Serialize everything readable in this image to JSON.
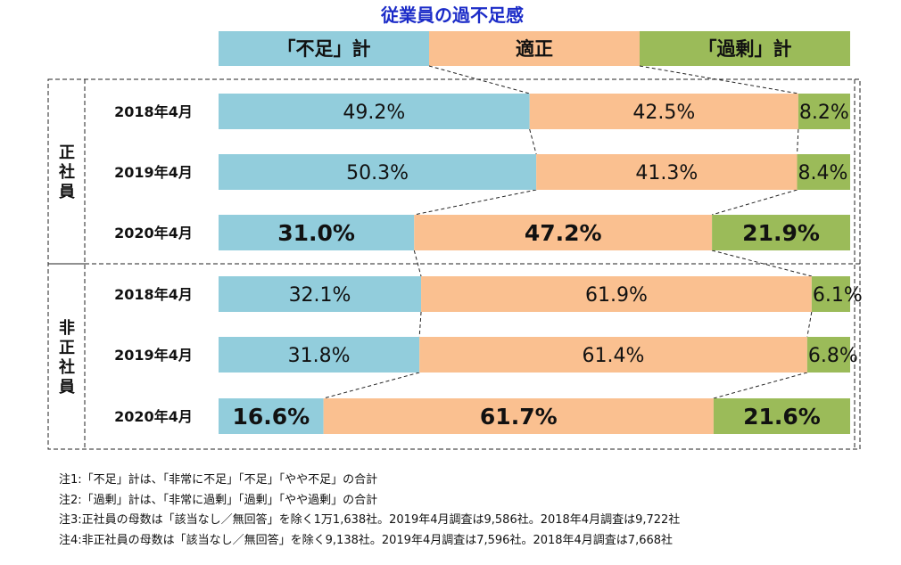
{
  "chart_data": {
    "type": "bar",
    "stacked": true,
    "orientation": "horizontal",
    "percent_stacked": true,
    "title": "従業員の過不足感",
    "legend": [
      "「不足」計",
      "適正",
      "「過剰」計"
    ],
    "legend_position": "top",
    "colors": [
      "#92cddc",
      "#fac090",
      "#9bbb59"
    ],
    "groups": [
      {
        "name": "正社員",
        "categories": [
          "2018年4月",
          "2019年4月",
          "2020年4月"
        ],
        "series": [
          {
            "name": "「不足」計",
            "values": [
              49.2,
              50.3,
              31.0
            ]
          },
          {
            "name": "適正",
            "values": [
              42.5,
              41.3,
              47.2
            ]
          },
          {
            "name": "「過剰」計",
            "values": [
              8.2,
              8.4,
              21.9
            ]
          }
        ],
        "labels": [
          [
            "49.2%",
            "42.5%",
            "8.2%"
          ],
          [
            "50.3%",
            "41.3%",
            "8.4%"
          ],
          [
            "31.0%",
            "47.2%",
            "21.9%"
          ]
        ]
      },
      {
        "name": "非正社員",
        "categories": [
          "2018年4月",
          "2019年4月",
          "2020年4月"
        ],
        "series": [
          {
            "name": "「不足」計",
            "values": [
              32.1,
              31.8,
              16.6
            ]
          },
          {
            "name": "適正",
            "values": [
              61.9,
              61.4,
              61.7
            ]
          },
          {
            "name": "「過剰」計",
            "values": [
              6.1,
              6.8,
              21.6
            ]
          }
        ],
        "labels": [
          [
            "32.1%",
            "61.9%",
            "6.1%"
          ],
          [
            "31.8%",
            "61.4%",
            "6.8%"
          ],
          [
            "16.6%",
            "61.7%",
            "21.6%"
          ]
        ]
      }
    ],
    "xlim": [
      0,
      100
    ],
    "highlight_category": "2020年4月"
  },
  "notes": [
    "注1:「不足」計は、「非常に不足」「不足」「やや不足」の合計",
    "注2:「過剰」計は、「非常に過剰」「過剰」「やや過剰」の合計",
    "注3:正社員の母数は「該当なし／無回答」を除く1万1,638社。2019年4月調査は9,586社。2018年4月調査は9,722社",
    "注4:非正社員の母数は「該当なし／無回答」を除く9,138社。2019年4月調査は7,596社。2018年4月調査は7,668社"
  ]
}
